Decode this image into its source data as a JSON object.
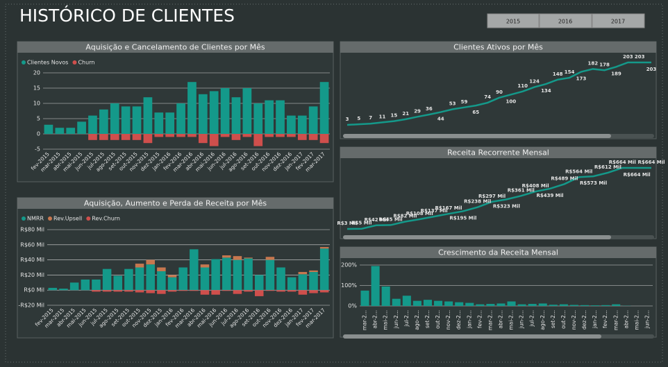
{
  "header": {
    "title": "HISTÓRICO DE CLIENTES"
  },
  "buttons": [
    "2015",
    "2016",
    "2017"
  ],
  "chart_data": [
    {
      "type": "bar",
      "title": "Aquisição e Cancelamento de Clientes por Mês",
      "stacked": true,
      "grid": true,
      "categories": [
        "fev-2015",
        "mar-2015",
        "abr-2015",
        "mai-2015",
        "jun-2015",
        "jul-2015",
        "ago-2015",
        "set-2015",
        "out-2015",
        "nov-2015",
        "dez-2015",
        "jan-2016",
        "fev-2016",
        "mar-2016",
        "abr-2016",
        "mai-2016",
        "jun-2016",
        "jul-2016",
        "ago-2016",
        "set-2016",
        "out-2016",
        "nov-2016",
        "dez-2016",
        "jan-2017",
        "fev-2017",
        "mar-2017"
      ],
      "series": [
        {
          "name": "Clientes Novos",
          "color": "#14998a",
          "values": [
            3,
            2,
            2,
            4,
            6,
            8,
            10,
            9,
            9,
            12,
            7,
            7,
            10,
            17,
            13,
            14,
            15,
            12,
            15,
            10,
            11,
            11,
            6,
            6,
            9,
            17
          ]
        },
        {
          "name": "Churn",
          "color": "#cf4f4c",
          "values": [
            0,
            0,
            0,
            0,
            -2,
            -2,
            -2,
            -2,
            -2,
            -3,
            -1,
            -1,
            -1,
            -1,
            -3,
            -4,
            -1,
            -2,
            -1,
            -4,
            -1,
            -1,
            -1,
            -2,
            -2,
            -3
          ]
        }
      ],
      "ylim": [
        -5,
        20
      ],
      "yticks": [
        -5,
        0,
        5,
        10,
        15,
        20
      ]
    },
    {
      "type": "bar",
      "title": "Aquisição, Aumento e Perda de Receita por Mês",
      "stacked": true,
      "grid": true,
      "categories": [
        "fev-2015",
        "mar-2015",
        "abr-2015",
        "mai-2015",
        "jun-2015",
        "jul-2015",
        "ago-2015",
        "set-2015",
        "out-2015",
        "nov-2015",
        "dez-2015",
        "jan-2016",
        "fev-2016",
        "mar-2016",
        "abr-2016",
        "mai-2016",
        "jun-2016",
        "jul-2016",
        "ago-2016",
        "set-2016",
        "out-2016",
        "nov-2016",
        "dez-2016",
        "jan-2017",
        "fev-2017",
        "mar-2017"
      ],
      "series": [
        {
          "name": "NMRR",
          "color": "#14998a",
          "values": [
            3000,
            2000,
            10000,
            14000,
            14000,
            28000,
            19000,
            28000,
            30000,
            34000,
            25000,
            17000,
            30000,
            54000,
            30000,
            41000,
            43000,
            40000,
            42000,
            20000,
            40000,
            30000,
            17000,
            21000,
            24000,
            55000
          ]
        },
        {
          "name": "Rev.Upsell",
          "color": "#c7774f",
          "values": [
            0,
            0,
            0,
            0,
            0,
            0,
            0,
            0,
            5000,
            6000,
            5000,
            3000,
            0,
            0,
            4000,
            0,
            3000,
            5000,
            1000,
            0,
            4000,
            0,
            0,
            3000,
            2000,
            2000
          ]
        },
        {
          "name": "Rev.Churn",
          "color": "#cf4f4c",
          "values": [
            0,
            0,
            0,
            0,
            -2000,
            -2000,
            -2000,
            -2000,
            -3000,
            -4000,
            -5000,
            -2000,
            -1000,
            -1000,
            -6000,
            -6000,
            -1000,
            -5000,
            -2000,
            -8000,
            -1000,
            -2000,
            -2000,
            -6000,
            -4000,
            -3000
          ]
        }
      ],
      "ylim": [
        -20000,
        80000
      ],
      "yticks": [
        {
          "value": -20000,
          "label": "-R$20 Mil"
        },
        {
          "value": 0,
          "label": "R$0 Mil"
        },
        {
          "value": 20000,
          "label": "R$20 Mil"
        },
        {
          "value": 40000,
          "label": "R$40 Mil"
        },
        {
          "value": 60000,
          "label": "R$60 Mil"
        },
        {
          "value": 80000,
          "label": "R$80 Mil"
        }
      ]
    },
    {
      "type": "line",
      "title": "Clientes Ativos por Mês",
      "color": "#14998a",
      "values": [
        3,
        5,
        7,
        11,
        15,
        21,
        29,
        36,
        44,
        53,
        59,
        65,
        74,
        90,
        100,
        110,
        124,
        134,
        148,
        154,
        173,
        182,
        178,
        189,
        203,
        203,
        203
      ]
    },
    {
      "type": "line",
      "title": "Receita Recorrente Mensal",
      "color": "#14998a",
      "values": [
        3000,
        5000,
        42000,
        45000,
        82000,
        108000,
        137000,
        167000,
        195000,
        238000,
        297000,
        323000,
        361000,
        408000,
        439000,
        489000,
        564000,
        573000,
        612000,
        664000,
        664000,
        664000
      ],
      "value_labels": [
        "R$3 Mil",
        "R$5 Mil",
        "R$42 Mil",
        "R$45 Mil",
        "R$82 Mil",
        "R$108 Mil",
        "R$137 Mil",
        "R$167 Mil",
        "R$195 Mil",
        "R$238 Mil",
        "R$297 Mil",
        "R$323 Mil",
        "R$361 Mil",
        "R$408 Mil",
        "R$439 Mil",
        "R$489 Mil",
        "R$564 Mil",
        "R$573 Mil",
        "R$612 Mil",
        "R$664 Mil",
        "R$664 Mil",
        "R$664 Mil"
      ]
    },
    {
      "type": "bar",
      "title": "Crescimento da Receita Mensal",
      "color": "#14998a",
      "grid": true,
      "categories": [
        "mar-2...",
        "abr-2...",
        "mai-2...",
        "jun-2...",
        "jul-2...",
        "ago-2...",
        "set-2...",
        "out-2...",
        "nov-2...",
        "dez-2...",
        "jan-2...",
        "fev-2...",
        "mar-2...",
        "abr-2...",
        "mai-2...",
        "jun-2...",
        "jul-2...",
        "ago-2...",
        "set-2...",
        "out-2...",
        "nov-2...",
        "dez-2...",
        "jan-2...",
        "fev-2...",
        "mar-2...",
        "abr-2...",
        "mai-2...",
        "jun-2..."
      ],
      "values": [
        75,
        195,
        95,
        35,
        50,
        25,
        30,
        25,
        22,
        18,
        15,
        8,
        10,
        12,
        22,
        8,
        10,
        12,
        6,
        8,
        5,
        4,
        3,
        4,
        8,
        1,
        0,
        0
      ],
      "ylim": [
        0,
        200
      ],
      "yticks": [
        {
          "value": 0,
          "label": "0%"
        },
        {
          "value": 100,
          "label": "100%"
        },
        {
          "value": 200,
          "label": "200%"
        }
      ]
    }
  ]
}
